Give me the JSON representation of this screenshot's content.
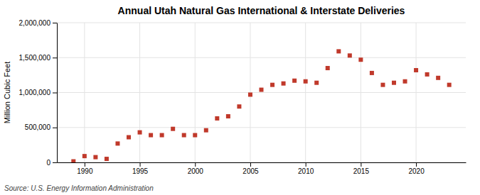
{
  "chart_data": {
    "type": "scatter",
    "title": "Annual Utah Natural Gas International & Interstate Deliveries",
    "ylabel": "Million Cubic Feet",
    "source": "Source: U.S. Energy Information Administration",
    "x": [
      1989,
      1990,
      1991,
      1992,
      1993,
      1994,
      1995,
      1996,
      1997,
      1998,
      1999,
      2000,
      2001,
      2002,
      2003,
      2004,
      2005,
      2006,
      2007,
      2008,
      2009,
      2010,
      2011,
      2012,
      2013,
      2014,
      2015,
      2016,
      2017,
      2018,
      2019,
      2020,
      2021,
      2022,
      2023
    ],
    "values": [
      15000,
      90000,
      75000,
      50000,
      270000,
      360000,
      430000,
      390000,
      390000,
      480000,
      390000,
      390000,
      460000,
      630000,
      660000,
      800000,
      970000,
      1040000,
      1110000,
      1130000,
      1170000,
      1160000,
      1140000,
      1350000,
      1590000,
      1530000,
      1470000,
      1280000,
      1110000,
      1140000,
      1160000,
      1320000,
      1260000,
      1210000,
      1110000
    ],
    "color": "#c0392b",
    "marker": "square",
    "xlim": [
      1987.5,
      2024.5
    ],
    "xticks": [
      1990,
      1995,
      2000,
      2005,
      2010,
      2015,
      2020
    ],
    "ylim": [
      0,
      2000000
    ],
    "yticks": [
      0,
      {
        "value": 500000,
        "label": "500,000"
      },
      {
        "value": 1000000,
        "label": "1,000,000"
      },
      {
        "value": 1500000,
        "label": "1,500,000"
      },
      {
        "value": 2000000,
        "label": "2,000,000"
      }
    ],
    "grid": true
  }
}
